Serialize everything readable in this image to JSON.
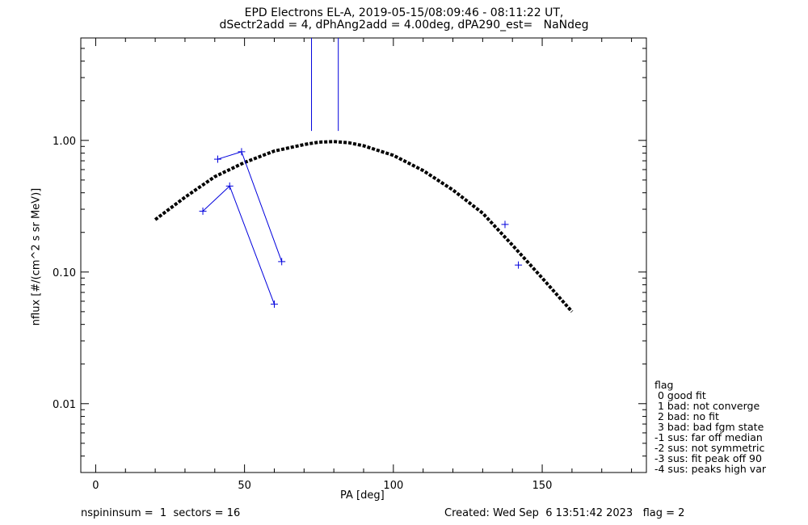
{
  "chart_data": {
    "type": "scatter",
    "title_lines": [
      "EPD Electrons EL-A, 2019-05-15/08:09:46 - 08:11:22 UT,",
      "dSectr2add = 4, dPhAng2add = 4.00deg, dPA290_est=   NaNdeg"
    ],
    "xlabel": "PA [deg]",
    "ylabel": "nflux [#/(cm^2 s sr MeV)]",
    "xlim": [
      -5,
      185
    ],
    "ylim": [
      0.003,
      6.0
    ],
    "yscale": "log",
    "x_ticks": [
      0,
      50,
      100,
      150
    ],
    "x_tick_labels": [
      "0",
      "50",
      "100",
      "150"
    ],
    "y_ticks": [
      0.01,
      0.1,
      1.0
    ],
    "y_tick_labels": [
      "0.01",
      "0.10",
      "1.00"
    ],
    "series": [
      {
        "kind": "fit-curve",
        "style": "dashed-thick",
        "color": "#000000",
        "x": [
          20,
          30,
          40,
          50,
          60,
          70,
          75,
          80,
          85,
          90,
          100,
          110,
          120,
          130,
          140,
          150,
          160
        ],
        "y": [
          0.25,
          0.37,
          0.53,
          0.68,
          0.83,
          0.93,
          0.97,
          0.98,
          0.96,
          0.91,
          0.77,
          0.59,
          0.42,
          0.28,
          0.16,
          0.09,
          0.05
        ]
      },
      {
        "kind": "data-segment",
        "color": "#0000dd",
        "x": [
          41.0,
          49.0,
          62.5
        ],
        "y": [
          0.72,
          0.82,
          0.12
        ]
      },
      {
        "kind": "data-segment",
        "color": "#0000dd",
        "x": [
          36.0,
          45.0,
          60.0
        ],
        "y": [
          0.29,
          0.45,
          0.057
        ]
      },
      {
        "kind": "data-points",
        "color": "#0000dd",
        "x": [
          137.5,
          142.0
        ],
        "y": [
          0.23,
          0.113
        ]
      },
      {
        "kind": "vertical-lines",
        "color": "#0000dd",
        "x": [
          72.5,
          81.5
        ],
        "y_from": 1.18,
        "y_to": 6.0
      }
    ]
  },
  "legend": {
    "lines": [
      "flag",
      " 0 good fit",
      " 1 bad: not converge",
      " 2 bad: no fit",
      " 3 bad: bad fgm state",
      "-1 sus: far off median",
      "-2 sus: not symmetric",
      "-3 sus: fit peak off 90",
      "-4 sus: peaks high var"
    ]
  },
  "footer": {
    "left": "nspininsum =  1  sectors = 16",
    "right": "Created: Wed Sep  6 13:51:42 2023   flag = 2"
  },
  "colors": {
    "data": "#0000dd",
    "fit": "#000000",
    "axes": "#000000"
  }
}
